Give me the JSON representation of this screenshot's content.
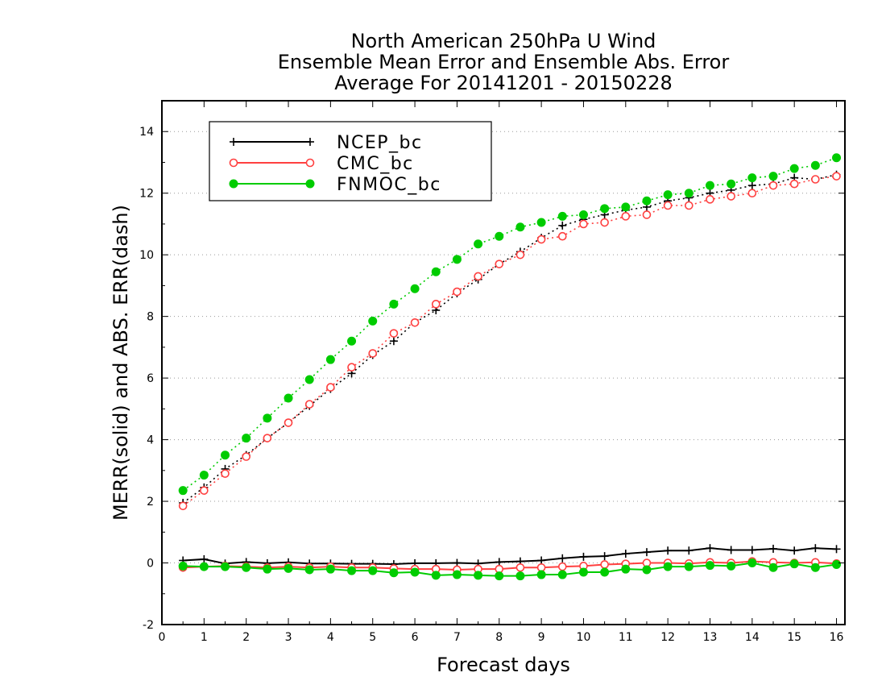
{
  "chart_data": {
    "type": "line",
    "title": [
      "North American 250hPa U Wind",
      "Ensemble Mean Error and Ensemble Abs. Error",
      "Average For 20141201 - 20150228"
    ],
    "xlabel": "Forecast days",
    "ylabel": "MERR(solid) and ABS. ERR(dash)",
    "xlim": [
      0,
      16.2
    ],
    "ylim": [
      -2,
      15
    ],
    "xticks": [
      0,
      1,
      2,
      3,
      4,
      5,
      6,
      7,
      8,
      9,
      10,
      11,
      12,
      13,
      14,
      15,
      16
    ],
    "yticks": [
      -2,
      0,
      2,
      4,
      6,
      8,
      10,
      12,
      14
    ],
    "grid": "horizontal dotted",
    "legend_position": "top-left",
    "x": [
      0.5,
      1.0,
      1.5,
      2.0,
      2.5,
      3.0,
      3.5,
      4.0,
      4.5,
      5.0,
      5.5,
      6.0,
      6.5,
      7.0,
      7.5,
      8.0,
      8.5,
      9.0,
      9.5,
      10.0,
      10.5,
      11.0,
      11.5,
      12.0,
      12.5,
      13.0,
      13.5,
      14.0,
      14.5,
      15.0,
      15.5,
      16.0
    ],
    "series": [
      {
        "name": "NCEP_bc",
        "color": "#000000",
        "marker": "plus",
        "merr": [
          0.08,
          0.12,
          -0.02,
          0.03,
          -0.01,
          0.02,
          -0.02,
          -0.02,
          -0.03,
          -0.03,
          -0.04,
          -0.01,
          -0.01,
          0.0,
          -0.02,
          0.03,
          0.05,
          0.08,
          0.15,
          0.2,
          0.22,
          0.3,
          0.35,
          0.4,
          0.4,
          0.48,
          0.42,
          0.42,
          0.46,
          0.4,
          0.48,
          0.45
        ],
        "abs_err": [
          1.95,
          2.45,
          3.05,
          3.5,
          4.05,
          4.55,
          5.1,
          5.65,
          6.15,
          6.75,
          7.2,
          7.8,
          8.2,
          8.75,
          9.2,
          9.7,
          10.1,
          10.55,
          10.95,
          11.15,
          11.3,
          11.45,
          11.55,
          11.75,
          11.85,
          12.0,
          12.1,
          12.25,
          12.3,
          12.5,
          12.45,
          12.6
        ]
      },
      {
        "name": "CMC_bc",
        "color": "#ff4040",
        "marker": "open-circle",
        "merr": [
          -0.15,
          -0.12,
          -0.1,
          -0.12,
          -0.15,
          -0.12,
          -0.15,
          -0.12,
          -0.15,
          -0.15,
          -0.18,
          -0.2,
          -0.2,
          -0.22,
          -0.2,
          -0.2,
          -0.15,
          -0.15,
          -0.12,
          -0.1,
          -0.05,
          -0.03,
          0.0,
          0.0,
          -0.02,
          0.02,
          0.0,
          0.05,
          0.02,
          0.0,
          0.02,
          -0.02
        ],
        "abs_err": [
          1.85,
          2.35,
          2.9,
          3.45,
          4.05,
          4.55,
          5.15,
          5.7,
          6.35,
          6.8,
          7.45,
          7.8,
          8.4,
          8.8,
          9.3,
          9.7,
          10.0,
          10.5,
          10.6,
          11.0,
          11.05,
          11.25,
          11.3,
          11.6,
          11.6,
          11.8,
          11.9,
          12.0,
          12.25,
          12.3,
          12.45,
          12.55
        ]
      },
      {
        "name": "FNMOC_bc",
        "color": "#00cc00",
        "marker": "filled-circle",
        "merr": [
          -0.1,
          -0.12,
          -0.12,
          -0.15,
          -0.2,
          -0.18,
          -0.22,
          -0.2,
          -0.25,
          -0.25,
          -0.32,
          -0.3,
          -0.4,
          -0.38,
          -0.4,
          -0.42,
          -0.42,
          -0.38,
          -0.38,
          -0.3,
          -0.3,
          -0.2,
          -0.22,
          -0.12,
          -0.12,
          -0.08,
          -0.1,
          0.0,
          -0.15,
          -0.03,
          -0.15,
          -0.05
        ],
        "abs_err": [
          2.35,
          2.85,
          3.5,
          4.05,
          4.7,
          5.35,
          5.95,
          6.6,
          7.2,
          7.85,
          8.4,
          8.9,
          9.45,
          9.85,
          10.35,
          10.6,
          10.9,
          11.05,
          11.25,
          11.3,
          11.5,
          11.55,
          11.75,
          11.95,
          12.0,
          12.25,
          12.3,
          12.5,
          12.55,
          12.8,
          12.9,
          13.15
        ]
      }
    ]
  }
}
